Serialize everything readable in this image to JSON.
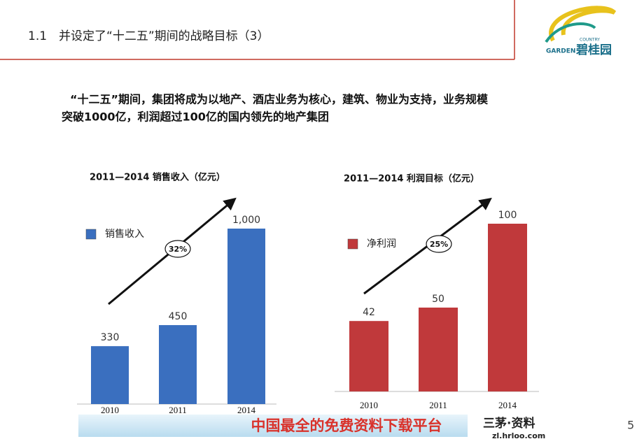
{
  "header": {
    "title": "1.1　并设定了“十二五”期间的战略目标（3）",
    "logo_top": "COUNTRY",
    "logo_left": "GARDEN",
    "logo_right": "碧桂园"
  },
  "headline": [
    "“十二五”期间，集团将成为以地产、酒店业务为核心，建筑、物业为支持，业务规模",
    "突破1000亿，利润超过100亿的国内领先的地产集团"
  ],
  "chart_data": [
    {
      "type": "bar",
      "title": "2011—2014 销售收入（亿元）",
      "categories": [
        "2010",
        "2011",
        "2014"
      ],
      "series": [
        {
          "name": "销售收入",
          "color": "#3a6fbf",
          "values": [
            330,
            450,
            1000
          ],
          "value_labels": [
            "330",
            "450",
            "1,000"
          ]
        }
      ],
      "annotation": "32%"
    },
    {
      "type": "bar",
      "title": "2011—2014 利润目标（亿元）",
      "categories": [
        "2010",
        "2011",
        "2014"
      ],
      "series": [
        {
          "name": "净利润",
          "color": "#c0393b",
          "values": [
            42,
            50,
            100
          ]
        }
      ],
      "annotation": "25%"
    }
  ],
  "footer": {
    "banner": "中国最全的免费资料下载平台",
    "brand": "三茅·资料",
    "url": "zl.hrloo.com"
  },
  "page_number": "5"
}
